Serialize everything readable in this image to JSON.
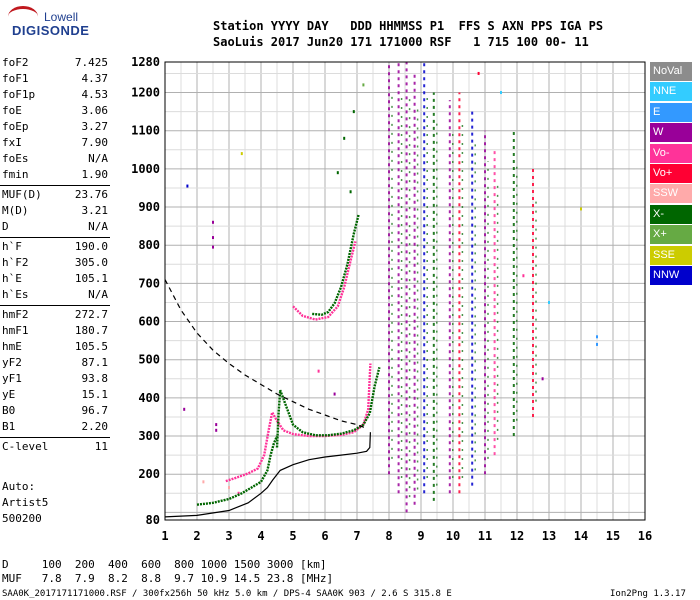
{
  "brand": {
    "line1": "Lowell",
    "line2": "DIGISONDE"
  },
  "header": {
    "row1": "Station YYYY DAY   DDD HHMMSS P1  FFS S AXN PPS IGA PS",
    "row2": "SaoLuis 2017 Jun20 171 171000 RSF   1 715 100 00- 11"
  },
  "params": [
    {
      "k": "foF2",
      "v": "7.425"
    },
    {
      "k": "foF1",
      "v": "4.37"
    },
    {
      "k": "foF1p",
      "v": "4.53"
    },
    {
      "k": "foE",
      "v": "3.06"
    },
    {
      "k": "foEp",
      "v": "3.27"
    },
    {
      "k": "fxI",
      "v": "7.90"
    },
    {
      "k": "foEs",
      "v": "N/A"
    },
    {
      "k": "fmin",
      "v": "1.90"
    },
    {
      "k": "MUF(D)",
      "v": "23.76"
    },
    {
      "k": "M(D)",
      "v": "3.21"
    },
    {
      "k": "D",
      "v": "N/A"
    },
    {
      "k": "h`F",
      "v": "190.0"
    },
    {
      "k": "h`F2",
      "v": "305.0"
    },
    {
      "k": "h`E",
      "v": "105.1"
    },
    {
      "k": "h`Es",
      "v": "N/A"
    },
    {
      "k": "hmF2",
      "v": "272.7"
    },
    {
      "k": "hmF1",
      "v": "180.7"
    },
    {
      "k": "hmE",
      "v": "105.5"
    },
    {
      "k": "yF2",
      "v": "87.1"
    },
    {
      "k": "yF1",
      "v": "93.8"
    },
    {
      "k": "yE",
      "v": "15.1"
    },
    {
      "k": "B0",
      "v": "96.7"
    },
    {
      "k": "B1",
      "v": "2.20"
    },
    {
      "k": "C-level",
      "v": "11"
    }
  ],
  "side": {
    "auto": "Auto:",
    "artist": "Artist5",
    "code": "500200"
  },
  "legend": [
    {
      "label": "NoVal",
      "color": "#8c8c8c"
    },
    {
      "label": "NNE",
      "color": "#33ccff"
    },
    {
      "label": "E",
      "color": "#3399ff"
    },
    {
      "label": "W",
      "color": "#990099"
    },
    {
      "label": "Vo-",
      "color": "#ff3399"
    },
    {
      "label": "Vo+",
      "color": "#ff0033"
    },
    {
      "label": "SSW",
      "color": "#ffaaaa"
    },
    {
      "label": "X-",
      "color": "#006600"
    },
    {
      "label": "X+",
      "color": "#66aa44"
    },
    {
      "label": "SSE",
      "color": "#cccc00"
    },
    {
      "label": "NNW",
      "color": "#0000cc"
    }
  ],
  "footer": {
    "d_row": "D     100  200  400  600  800 1000 1500 3000 [km]",
    "muf_row": "MUF   7.8  7.9  8.2  8.8  9.7 10.9 14.5 23.8 [MHz]",
    "file": "SAA0K_2017171171000.RSF / 300fx256h 50 kHz 5.0 km / DPS-4 SAA0K 903 / 2.6 S 315.8 E",
    "version": "Ion2Png 1.3.17"
  },
  "chart_data": {
    "type": "scatter",
    "x_ticks": [
      1,
      2,
      3,
      4,
      5,
      6,
      7,
      8,
      9,
      10,
      11,
      12,
      13,
      14,
      15,
      16
    ],
    "y_ticks": [
      80,
      200,
      300,
      400,
      500,
      600,
      700,
      800,
      900,
      1000,
      1100,
      1200,
      1280
    ],
    "xlim": [
      1,
      16
    ],
    "ylim": [
      80,
      1280
    ],
    "grid": true,
    "series": [
      {
        "type": "line",
        "color": "#ff3399",
        "x": [
          2.9,
          3.2,
          3.6,
          3.9,
          4.1,
          4.25,
          4.35,
          4.5,
          4.7,
          5.0,
          5.5,
          6.0,
          6.5,
          6.9,
          7.2,
          7.35,
          7.42
        ],
        "y": [
          182,
          190,
          202,
          215,
          250,
          320,
          362,
          340,
          315,
          305,
          300,
          300,
          303,
          310,
          330,
          370,
          490
        ]
      },
      {
        "type": "line",
        "color": "#006600",
        "x": [
          4.5,
          4.55,
          4.6,
          4.8,
          5.0,
          5.3,
          5.7,
          6.1,
          6.5,
          6.9,
          7.2,
          7.4,
          7.55,
          7.7
        ],
        "y": [
          270,
          360,
          420,
          375,
          330,
          310,
          302,
          302,
          306,
          315,
          330,
          360,
          430,
          480
        ]
      },
      {
        "type": "line",
        "color": "#006600",
        "x": [
          2.0,
          2.5,
          3.0,
          3.4,
          3.7,
          4.0,
          4.2,
          4.3,
          4.4,
          4.5
        ],
        "y": [
          120,
          125,
          135,
          150,
          165,
          180,
          210,
          250,
          280,
          300
        ]
      },
      {
        "type": "line",
        "color": "#ff3399",
        "x": [
          5.0,
          5.3,
          5.7,
          6.1,
          6.4,
          6.6,
          6.8,
          6.95
        ],
        "y": [
          640,
          615,
          605,
          612,
          640,
          690,
          760,
          810
        ]
      },
      {
        "type": "line",
        "color": "#006600",
        "x": [
          5.6,
          5.9,
          6.1,
          6.3,
          6.5,
          6.7,
          6.9,
          7.05
        ],
        "y": [
          620,
          618,
          625,
          648,
          690,
          750,
          830,
          880
        ]
      },
      {
        "type": "line",
        "color": "#000000",
        "x": [
          1.0,
          2.0,
          3.0,
          3.6,
          4.0,
          4.2,
          4.37,
          4.6,
          5.0,
          5.5,
          6.0,
          6.5,
          7.0,
          7.3,
          7.4,
          7.42
        ],
        "y": [
          88,
          92,
          105,
          125,
          150,
          165,
          185,
          210,
          225,
          238,
          245,
          250,
          255,
          260,
          270,
          310
        ]
      },
      {
        "type": "line",
        "dashed": true,
        "color": "#000000",
        "x": [
          1.0,
          1.5,
          2.0,
          2.5,
          3.0,
          3.5,
          4.0,
          4.5,
          5.0,
          5.5,
          6.0,
          6.5,
          7.0,
          7.3
        ],
        "y": [
          710,
          630,
          570,
          525,
          490,
          460,
          435,
          410,
          390,
          370,
          355,
          340,
          330,
          320
        ]
      }
    ],
    "columns": [
      {
        "x": 8.0,
        "ymin": 200,
        "ymax": 1280,
        "color": "#990099"
      },
      {
        "x": 8.3,
        "ymin": 150,
        "ymax": 1280,
        "color": "#990099"
      },
      {
        "x": 8.55,
        "ymin": 100,
        "ymax": 1280,
        "color": "#990099"
      },
      {
        "x": 8.8,
        "ymin": 120,
        "ymax": 1250,
        "color": "#990099"
      },
      {
        "x": 9.1,
        "ymin": 150,
        "ymax": 1280,
        "color": "#0000cc"
      },
      {
        "x": 9.4,
        "ymin": 130,
        "ymax": 1200,
        "color": "#006600"
      },
      {
        "x": 9.9,
        "ymin": 150,
        "ymax": 1180,
        "color": "#990099"
      },
      {
        "x": 10.2,
        "ymin": 150,
        "ymax": 1200,
        "color": "#ff0033"
      },
      {
        "x": 10.6,
        "ymin": 170,
        "ymax": 1150,
        "color": "#0000cc"
      },
      {
        "x": 11.0,
        "ymin": 200,
        "ymax": 1100,
        "color": "#990099"
      },
      {
        "x": 11.3,
        "ymin": 250,
        "ymax": 1050,
        "color": "#ff3399"
      },
      {
        "x": 11.9,
        "ymin": 300,
        "ymax": 1100,
        "color": "#006600"
      },
      {
        "x": 12.5,
        "ymin": 350,
        "ymax": 1000,
        "color": "#ff0033"
      }
    ],
    "dots": [
      {
        "x": 1.7,
        "y": 955,
        "c": "#0000cc"
      },
      {
        "x": 2.5,
        "y": 860,
        "c": "#990099"
      },
      {
        "x": 2.5,
        "y": 820,
        "c": "#990099"
      },
      {
        "x": 2.5,
        "y": 795,
        "c": "#990099"
      },
      {
        "x": 1.6,
        "y": 370,
        "c": "#990099"
      },
      {
        "x": 2.6,
        "y": 330,
        "c": "#990099"
      },
      {
        "x": 2.6,
        "y": 315,
        "c": "#990099"
      },
      {
        "x": 3.4,
        "y": 1040,
        "c": "#cccc00"
      },
      {
        "x": 14.5,
        "y": 560,
        "c": "#3399ff"
      },
      {
        "x": 14.5,
        "y": 540,
        "c": "#3399ff"
      },
      {
        "x": 14.0,
        "y": 895,
        "c": "#cccc00"
      },
      {
        "x": 13.0,
        "y": 650,
        "c": "#33ccff"
      },
      {
        "x": 12.8,
        "y": 450,
        "c": "#990099"
      },
      {
        "x": 12.2,
        "y": 720,
        "c": "#ff3399"
      },
      {
        "x": 11.5,
        "y": 1200,
        "c": "#33ccff"
      },
      {
        "x": 10.8,
        "y": 1250,
        "c": "#ff0033"
      },
      {
        "x": 7.2,
        "y": 1220,
        "c": "#66aa44"
      },
      {
        "x": 6.9,
        "y": 1150,
        "c": "#006600"
      },
      {
        "x": 6.6,
        "y": 1080,
        "c": "#006600"
      },
      {
        "x": 6.4,
        "y": 990,
        "c": "#006600"
      },
      {
        "x": 6.8,
        "y": 940,
        "c": "#006600"
      },
      {
        "x": 2.2,
        "y": 180,
        "c": "#ffaaaa"
      },
      {
        "x": 3.0,
        "y": 165,
        "c": "#ffaaaa"
      },
      {
        "x": 3.3,
        "y": 150,
        "c": "#ff3399"
      },
      {
        "x": 5.8,
        "y": 470,
        "c": "#ff3399"
      },
      {
        "x": 6.3,
        "y": 410,
        "c": "#990099"
      }
    ]
  }
}
